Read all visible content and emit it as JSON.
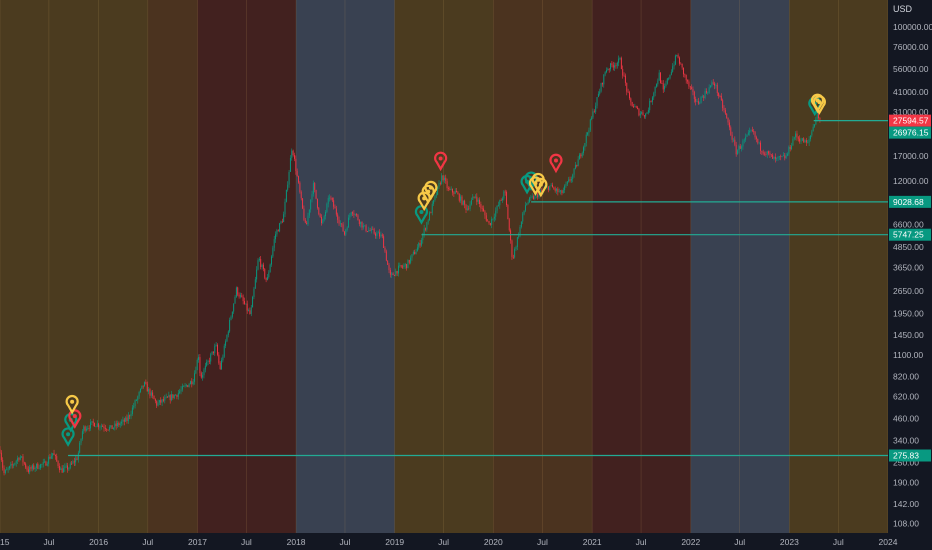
{
  "chart_data": {
    "type": "candlestick",
    "price_unit": "USD",
    "y_scale": "log",
    "y_range": [
      95,
      145000
    ],
    "x_range": [
      "2015-01-01",
      "2024-01-01"
    ],
    "x_ticks": [
      "2015",
      "Jul",
      "2016",
      "Jul",
      "2017",
      "Jul",
      "2018",
      "Jul",
      "2019",
      "Jul",
      "2020",
      "Jul",
      "2021",
      "Jul",
      "2022",
      "Jul",
      "2023",
      "Jul",
      "2024"
    ],
    "y_ticks": [
      "100000.00",
      "76000.00",
      "56000.00",
      "41000.00",
      "31000.00",
      "17000.00",
      "12000.00",
      "6600.00",
      "4850.00",
      "3650.00",
      "2650.00",
      "1950.00",
      "1450.00",
      "1100.00",
      "820.00",
      "620.00",
      "460.00",
      "340.00",
      "250.00",
      "190.00",
      "142.00",
      "108.00"
    ],
    "price_labels": [
      {
        "text": "27594.57",
        "value": 27594.57,
        "color": "#f23645"
      },
      {
        "text": "26976.15",
        "value": 26976.15,
        "color": "#089981"
      },
      {
        "text": "9028.68",
        "value": 9028.68,
        "color": "#089981"
      },
      {
        "text": "5747.25",
        "value": 5747.25,
        "color": "#089981"
      },
      {
        "text": "275.83",
        "value": 275.83,
        "color": "#089981"
      }
    ],
    "horizontal_lines": [
      {
        "value": 275.83,
        "from": "2015-09-10"
      },
      {
        "value": 5747.25,
        "from": "2019-04-10"
      },
      {
        "value": 9028.68,
        "from": "2020-05-20"
      },
      {
        "value": 27594.57,
        "from": "2023-04-01"
      }
    ],
    "period_bands": [
      {
        "from": "2015-01-01",
        "to": "2016-07-01",
        "color": "#7a5a1e"
      },
      {
        "from": "2016-07-01",
        "to": "2017-01-01",
        "color": "#7a4a1e"
      },
      {
        "from": "2017-01-01",
        "to": "2018-01-01",
        "color": "#6a2a1e"
      },
      {
        "from": "2018-01-01",
        "to": "2019-01-01",
        "color": "#5a6478"
      },
      {
        "from": "2019-01-01",
        "to": "2020-01-01",
        "color": "#7a5a1e"
      },
      {
        "from": "2020-01-01",
        "to": "2021-01-01",
        "color": "#7a4a1e"
      },
      {
        "from": "2021-01-01",
        "to": "2022-01-01",
        "color": "#6a2a1e"
      },
      {
        "from": "2022-01-01",
        "to": "2023-01-01",
        "color": "#5a6478"
      },
      {
        "from": "2023-01-01",
        "to": "2024-01-01",
        "color": "#7a5a1e"
      }
    ],
    "price_path": [
      [
        "2015-01-01",
        300
      ],
      [
        "2015-01-15",
        215
      ],
      [
        "2015-02-15",
        240
      ],
      [
        "2015-03-15",
        275
      ],
      [
        "2015-04-15",
        225
      ],
      [
        "2015-05-15",
        238
      ],
      [
        "2015-06-15",
        245
      ],
      [
        "2015-07-15",
        285
      ],
      [
        "2015-08-15",
        225
      ],
      [
        "2015-09-15",
        235
      ],
      [
        "2015-10-15",
        270
      ],
      [
        "2015-11-04",
        400
      ],
      [
        "2015-12-15",
        430
      ],
      [
        "2016-02-15",
        400
      ],
      [
        "2016-04-15",
        450
      ],
      [
        "2016-06-17",
        740
      ],
      [
        "2016-08-03",
        560
      ],
      [
        "2016-10-15",
        640
      ],
      [
        "2016-12-15",
        780
      ],
      [
        "2017-01-05",
        1100
      ],
      [
        "2017-01-12",
        800
      ],
      [
        "2017-03-10",
        1250
      ],
      [
        "2017-03-25",
        900
      ],
      [
        "2017-05-25",
        2700
      ],
      [
        "2017-07-16",
        1900
      ],
      [
        "2017-08-15",
        4200
      ],
      [
        "2017-09-15",
        3000
      ],
      [
        "2017-10-15",
        5700
      ],
      [
        "2017-11-15",
        7300
      ],
      [
        "2017-12-17",
        19500
      ],
      [
        "2018-02-06",
        6200
      ],
      [
        "2018-03-05",
        11500
      ],
      [
        "2018-04-06",
        6500
      ],
      [
        "2018-05-05",
        9800
      ],
      [
        "2018-06-29",
        5800
      ],
      [
        "2018-07-25",
        8200
      ],
      [
        "2018-09-10",
        6300
      ],
      [
        "2018-11-15",
        5600
      ],
      [
        "2018-12-15",
        3200
      ],
      [
        "2019-01-15",
        3600
      ],
      [
        "2019-02-15",
        3800
      ],
      [
        "2019-04-02",
        5000
      ],
      [
        "2019-05-15",
        8000
      ],
      [
        "2019-06-26",
        13000
      ],
      [
        "2019-07-20",
        10500
      ],
      [
        "2019-08-15",
        10300
      ],
      [
        "2019-09-25",
        8200
      ],
      [
        "2019-10-26",
        9900
      ],
      [
        "2019-12-17",
        6600
      ],
      [
        "2020-02-13",
        10400
      ],
      [
        "2020-03-12",
        4100
      ],
      [
        "2020-04-30",
        8800
      ],
      [
        "2020-06-01",
        9700
      ],
      [
        "2020-07-27",
        11200
      ],
      [
        "2020-09-08",
        10100
      ],
      [
        "2020-10-21",
        13000
      ],
      [
        "2020-11-30",
        19500
      ],
      [
        "2020-12-31",
        29000
      ],
      [
        "2021-02-21",
        56000
      ],
      [
        "2021-04-14",
        63000
      ],
      [
        "2021-05-19",
        36000
      ],
      [
        "2021-06-22",
        31000
      ],
      [
        "2021-07-20",
        30000
      ],
      [
        "2021-09-06",
        52000
      ],
      [
        "2021-09-21",
        41000
      ],
      [
        "2021-11-10",
        68000
      ],
      [
        "2021-12-20",
        46000
      ],
      [
        "2022-01-24",
        35000
      ],
      [
        "2022-03-28",
        47000
      ],
      [
        "2022-05-12",
        29000
      ],
      [
        "2022-06-18",
        18000
      ],
      [
        "2022-08-15",
        24000
      ],
      [
        "2022-09-15",
        19000
      ],
      [
        "2022-11-09",
        16000
      ],
      [
        "2022-12-20",
        16800
      ],
      [
        "2023-01-20",
        22500
      ],
      [
        "2023-03-10",
        20000
      ],
      [
        "2023-04-14",
        30500
      ],
      [
        "2023-04-25",
        27600
      ]
    ],
    "markers": [
      {
        "date": "2015-09-10",
        "value": 320,
        "color": "#089981"
      },
      {
        "date": "2015-09-20",
        "value": 390,
        "color": "#089981"
      },
      {
        "date": "2015-10-05",
        "value": 410,
        "color": "#f23645"
      },
      {
        "date": "2015-09-25",
        "value": 500,
        "color": "#f7c948"
      },
      {
        "date": "2019-04-10",
        "value": 6800,
        "color": "#089981"
      },
      {
        "date": "2019-04-20",
        "value": 8200,
        "color": "#f7c948"
      },
      {
        "date": "2019-05-05",
        "value": 9000,
        "color": "#f7c948"
      },
      {
        "date": "2019-05-15",
        "value": 9500,
        "color": "#f7c948"
      },
      {
        "date": "2019-06-20",
        "value": 14200,
        "color": "#f23645"
      },
      {
        "date": "2020-05-05",
        "value": 10300,
        "color": "#089981"
      },
      {
        "date": "2020-05-20",
        "value": 10800,
        "color": "#089981"
      },
      {
        "date": "2020-06-05",
        "value": 10100,
        "color": "#f7c948"
      },
      {
        "date": "2020-06-15",
        "value": 10600,
        "color": "#f7c948"
      },
      {
        "date": "2020-06-25",
        "value": 9900,
        "color": "#f7c948"
      },
      {
        "date": "2020-08-20",
        "value": 13800,
        "color": "#f23645"
      },
      {
        "date": "2023-04-05",
        "value": 30200,
        "color": "#089981"
      },
      {
        "date": "2023-04-15",
        "value": 31500,
        "color": "#f7c948"
      },
      {
        "date": "2023-04-22",
        "value": 30800,
        "color": "#f7c948"
      }
    ],
    "up_color": "#089981",
    "down_color": "#f23645"
  }
}
